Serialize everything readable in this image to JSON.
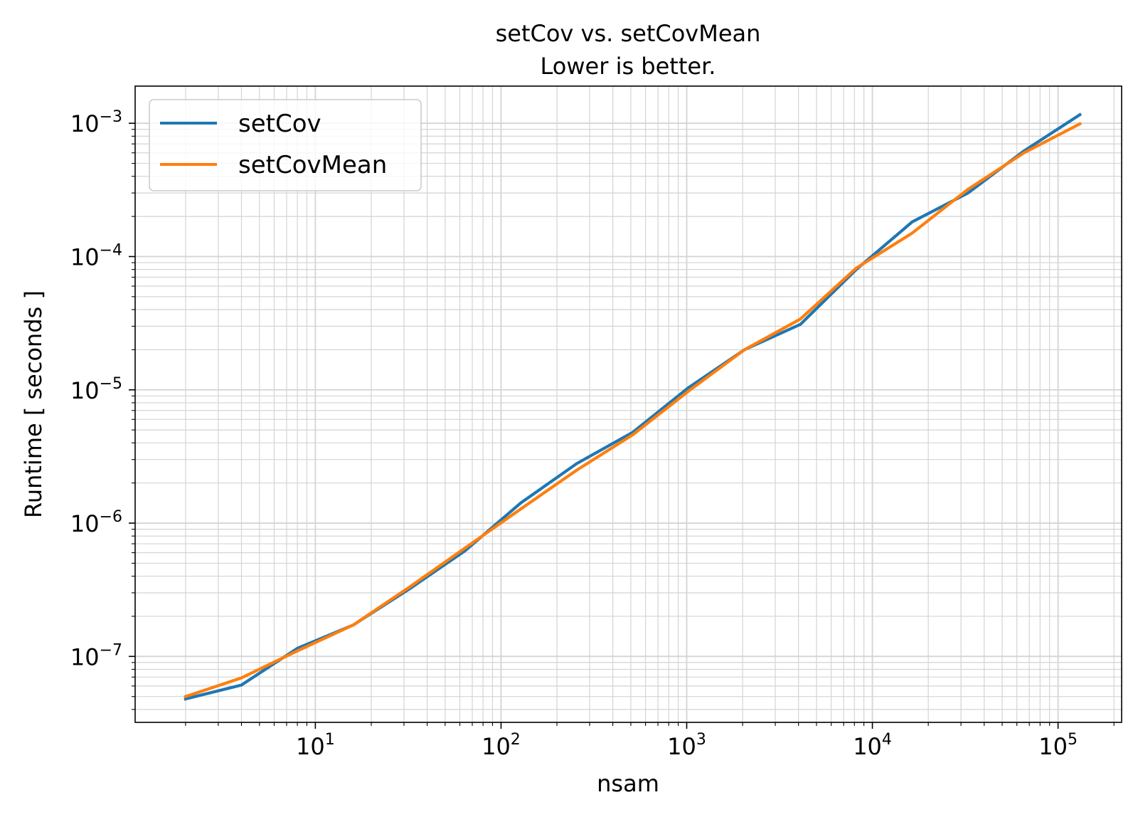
{
  "chart_data": {
    "type": "line",
    "title": "setCov vs. setCovMean",
    "subtitle": "Lower is better.",
    "xlabel": "nsam",
    "ylabel": "Runtime [ seconds ]",
    "xscale": "log",
    "yscale": "log",
    "xlim": [
      1.07,
      220000
    ],
    "ylim": [
      3.2e-08,
      0.0019
    ],
    "grid": true,
    "legend_position": "top-left",
    "x_ticks": [
      {
        "value": 10,
        "base": "10",
        "exp": "1"
      },
      {
        "value": 100,
        "base": "10",
        "exp": "2"
      },
      {
        "value": 1000,
        "base": "10",
        "exp": "3"
      },
      {
        "value": 10000,
        "base": "10",
        "exp": "4"
      },
      {
        "value": 100000,
        "base": "10",
        "exp": "5"
      }
    ],
    "y_ticks": [
      {
        "value": 1e-07,
        "base": "10",
        "exp": "−7"
      },
      {
        "value": 1e-06,
        "base": "10",
        "exp": "−6"
      },
      {
        "value": 1e-05,
        "base": "10",
        "exp": "−5"
      },
      {
        "value": 0.0001,
        "base": "10",
        "exp": "−4"
      },
      {
        "value": 0.001,
        "base": "10",
        "exp": "−3"
      }
    ],
    "x": [
      2,
      4,
      8,
      16,
      32,
      64,
      128,
      256,
      512,
      1024,
      2048,
      4096,
      8192,
      16384,
      32768,
      65536,
      131072
    ],
    "series": [
      {
        "name": "setCov",
        "color": "#1f77b4",
        "values": [
          4.8e-08,
          6.1e-08,
          1.15e-07,
          1.72e-07,
          3.2e-07,
          6.2e-07,
          1.42e-06,
          2.8e-06,
          4.8e-06,
          1.04e-05,
          2e-05,
          3.1e-05,
          8e-05,
          0.000182,
          0.0003,
          0.00062,
          0.00116
        ]
      },
      {
        "name": "setCovMean",
        "color": "#ff7f0e",
        "values": [
          5e-08,
          6.9e-08,
          1.1e-07,
          1.72e-07,
          3.3e-07,
          6.5e-07,
          1.28e-06,
          2.5e-06,
          4.6e-06,
          9.8e-06,
          2e-05,
          3.4e-05,
          8.2e-05,
          0.00015,
          0.00032,
          0.0006,
          0.00099
        ]
      }
    ]
  }
}
